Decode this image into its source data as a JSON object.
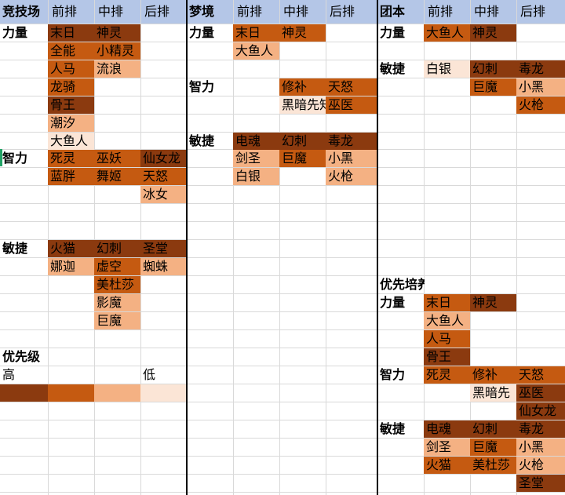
{
  "colors": {
    "header": "#b4c6e7",
    "p1": "#8b3a0f",
    "p2": "#c55a11",
    "p3": "#f4b183",
    "p4": "#fbe5d6"
  },
  "header_row": [
    "竞技场",
    "前排",
    "中排",
    "后排",
    "梦境",
    "前排",
    "中排",
    "后排",
    "团本",
    "前排",
    "中排",
    "后排"
  ],
  "arena": {
    "str_label": "力量",
    "str": [
      [
        "末日",
        "神灵",
        ""
      ],
      [
        "全能",
        "小精灵",
        ""
      ],
      [
        "人马",
        "流浪",
        ""
      ],
      [
        "龙骑",
        "",
        ""
      ],
      [
        "骨王",
        "",
        ""
      ],
      [
        "潮汐",
        "",
        ""
      ],
      [
        "大鱼人",
        "",
        ""
      ]
    ],
    "int_label": "智力",
    "int": [
      [
        "死灵",
        "巫妖",
        "仙女龙"
      ],
      [
        "蓝胖",
        "舞姬",
        "天怒"
      ],
      [
        "",
        "",
        "冰女"
      ]
    ],
    "agi_label": "敏捷",
    "agi": [
      [
        "火猫",
        "幻刺",
        "圣堂"
      ],
      [
        "娜迦",
        "虚空",
        "蜘蛛"
      ],
      [
        "",
        "美杜莎",
        ""
      ],
      [
        "",
        "影魔",
        ""
      ],
      [
        "",
        "巨魔",
        ""
      ]
    ],
    "priority_label": "优先级",
    "high": "高",
    "low": "低"
  },
  "dream": {
    "str_label": "力量",
    "str": [
      [
        "末日",
        "神灵",
        ""
      ],
      [
        "大鱼人",
        "",
        ""
      ]
    ],
    "int_label": "智力",
    "int": [
      [
        "",
        "修补",
        "天怒"
      ],
      [
        "",
        "黑暗先知",
        "巫医"
      ]
    ],
    "agi_label": "敏捷",
    "agi": [
      [
        "电魂",
        "幻刺",
        "毒龙"
      ],
      [
        "剑圣",
        "巨魔",
        "小黑"
      ],
      [
        "白银",
        "",
        "火枪"
      ]
    ]
  },
  "raid": {
    "str_label": "力量",
    "str": [
      [
        "大鱼人",
        "神灵",
        ""
      ]
    ],
    "agi_label": "敏捷",
    "agi": [
      [
        "白银",
        "幻刺",
        "毒龙"
      ],
      [
        "",
        "巨魔",
        "小黑"
      ],
      [
        "",
        "",
        "火枪"
      ]
    ]
  },
  "train": {
    "title": "优先培养",
    "str_label": "力量",
    "str": [
      [
        "末日",
        "神灵",
        ""
      ],
      [
        "大鱼人",
        "",
        ""
      ],
      [
        "人马",
        "",
        ""
      ],
      [
        "骨王",
        "",
        ""
      ]
    ],
    "int_label": "智力",
    "int": [
      [
        "死灵",
        "修补",
        "天怒"
      ],
      [
        "",
        "黑暗先",
        "巫医"
      ],
      [
        "",
        "",
        "仙女龙"
      ]
    ],
    "agi_label": "敏捷",
    "agi": [
      [
        "电魂",
        "幻刺",
        "毒龙"
      ],
      [
        "剑圣",
        "巨魔",
        "小黑"
      ],
      [
        "火猫",
        "美杜莎",
        "火枪"
      ],
      [
        "",
        "",
        "圣堂"
      ]
    ]
  }
}
